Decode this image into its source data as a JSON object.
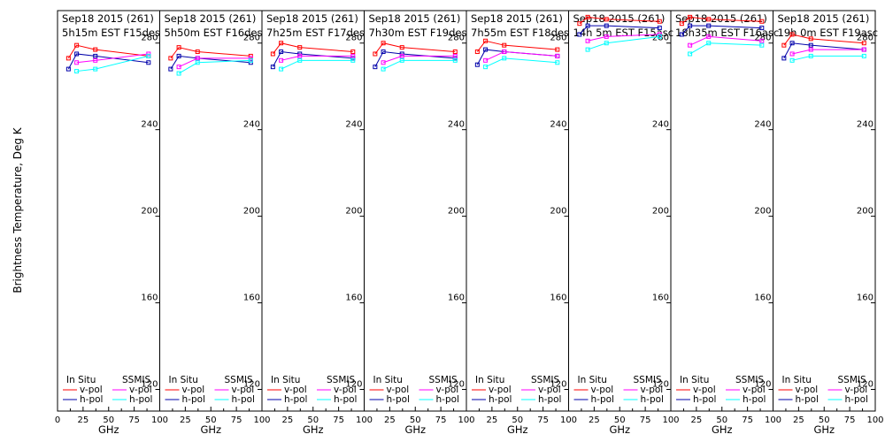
{
  "chart_data": {
    "type": "line",
    "ylabel": "Brightness Temperature, Deg K",
    "xlabel": "GHz",
    "ylim": [
      110,
      295
    ],
    "xlim": [
      0,
      100
    ],
    "yticks": [
      120,
      160,
      200,
      240,
      280
    ],
    "xticks_first": [
      "0",
      "25",
      "50",
      "75",
      "100"
    ],
    "xticks": [
      "25",
      "50",
      "75",
      "100"
    ],
    "x": [
      10.7,
      18.7,
      37,
      89
    ],
    "colors": {
      "insitu_v": "#ff0000",
      "insitu_h": "#0000aa",
      "ssmis_v": "#ff00ff",
      "ssmis_h": "#00ffff"
    },
    "legend": {
      "insitu": "In Situ",
      "ssmis": "SSMIS",
      "vpol": "v-pol",
      "hpol": "h-pol"
    },
    "panels": [
      {
        "title1": "Sep18 2015 (261)",
        "title2": "5h15m EST F15des",
        "insitu_v": [
          273,
          279,
          277,
          274
        ],
        "insitu_h": [
          268,
          275,
          274,
          271
        ],
        "ssmis_v": [
          null,
          271,
          272,
          275
        ],
        "ssmis_h": [
          null,
          267,
          268,
          274
        ]
      },
      {
        "title1": "Sep18 2015 (261)",
        "title2": "5h50m EST F16des",
        "insitu_v": [
          273,
          278,
          276,
          274
        ],
        "insitu_h": [
          268,
          274,
          273,
          271
        ],
        "ssmis_v": [
          null,
          269,
          273,
          273
        ],
        "ssmis_h": [
          null,
          266,
          271,
          272
        ]
      },
      {
        "title1": "Sep18 2015 (261)",
        "title2": "7h25m EST F17des",
        "insitu_v": [
          275,
          280,
          278,
          276
        ],
        "insitu_h": [
          269,
          276,
          275,
          273
        ],
        "ssmis_v": [
          null,
          272,
          274,
          274
        ],
        "ssmis_h": [
          null,
          268,
          272,
          272
        ]
      },
      {
        "title1": "Sep18 2015 (261)",
        "title2": "7h30m EST F19des",
        "insitu_v": [
          275,
          280,
          278,
          276
        ],
        "insitu_h": [
          269,
          276,
          275,
          273
        ],
        "ssmis_v": [
          null,
          271,
          274,
          274
        ],
        "ssmis_h": [
          null,
          268,
          272,
          272
        ]
      },
      {
        "title1": "Sep18 2015 (261)",
        "title2": "7h55m EST F18des",
        "insitu_v": [
          276,
          281,
          279,
          277
        ],
        "insitu_h": [
          270,
          277,
          276,
          274
        ],
        "ssmis_v": [
          null,
          272,
          276,
          274
        ],
        "ssmis_h": [
          null,
          269,
          273,
          271
        ]
      },
      {
        "title1": "Sep18 2015 (261)",
        "title2": "14h 5m EST F15asc",
        "insitu_v": [
          289,
          292,
          291,
          290
        ],
        "insitu_h": [
          284,
          288,
          288,
          287
        ],
        "ssmis_v": [
          null,
          281,
          283,
          284
        ],
        "ssmis_h": [
          null,
          277,
          280,
          283
        ]
      },
      {
        "title1": "Sep18 2015 (261)",
        "title2": "18h35m EST F16asc",
        "insitu_v": [
          289,
          292,
          291,
          290
        ],
        "insitu_h": [
          284,
          288,
          288,
          287
        ],
        "ssmis_v": [
          null,
          279,
          283,
          281
        ],
        "ssmis_h": [
          null,
          275,
          280,
          279
        ]
      },
      {
        "title1": "Sep18 2015 (261)",
        "title2": "19h 0m EST F19asc",
        "insitu_v": [
          279,
          284,
          282,
          280
        ],
        "insitu_h": [
          273,
          280,
          279,
          277
        ],
        "ssmis_v": [
          null,
          275,
          277,
          277
        ],
        "ssmis_h": [
          null,
          272,
          274,
          274
        ]
      }
    ]
  }
}
